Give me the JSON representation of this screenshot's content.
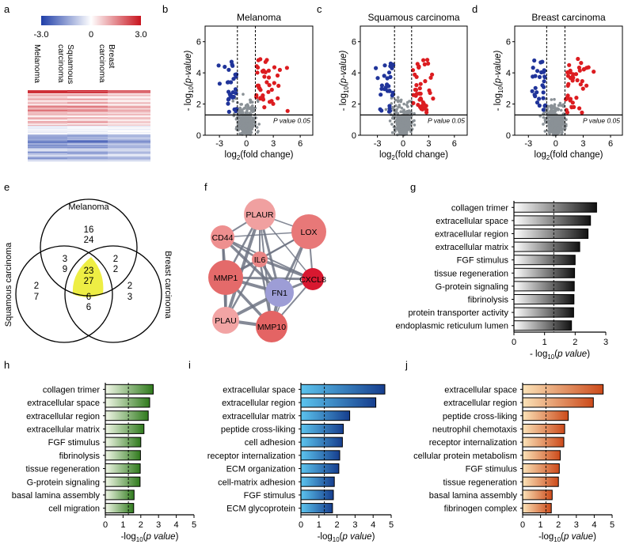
{
  "panel_letters": {
    "a": "a",
    "b": "b",
    "c": "c",
    "d": "d",
    "e": "e",
    "f": "f",
    "g": "g",
    "h": "h",
    "i": "i",
    "j": "j"
  },
  "heatmap": {
    "scale_min": "-3.0",
    "scale_mid": "0",
    "scale_max": "3.0",
    "columns": [
      "Melanoma",
      "Squamous carcinoma",
      "Breast carcinoma"
    ],
    "colors": {
      "neg": "#1f3ea8",
      "mid": "#ffffff",
      "pos": "#c8141e"
    }
  },
  "volcano": {
    "common": {
      "threshold_label": "P value 0.05",
      "xlabel_pre": "log",
      "xlabel_sub": "2",
      "xlabel_post": "(fold change)",
      "ylabel_pre": "- log",
      "ylabel_sub": "10",
      "ylabel_post": "(p-value)"
    },
    "plots": [
      {
        "key": "b",
        "title": "Melanoma",
        "xlim": [
          -4.6,
          7.4
        ],
        "xticks": [
          -3,
          0,
          3,
          6
        ],
        "ylim": [
          0,
          7
        ],
        "yticks": [
          0,
          2,
          4,
          6
        ],
        "fc_lines": [
          -1,
          1
        ],
        "p_line": 1.3
      },
      {
        "key": "c",
        "title": "Squamous carcinoma",
        "xlim": [
          -5,
          7.5
        ],
        "xticks": [
          -3,
          0,
          3,
          6
        ],
        "ylim": [
          0,
          7
        ],
        "yticks": [
          0,
          2,
          4,
          6
        ],
        "fc_lines": [
          -1,
          1
        ],
        "p_line": 1.3
      },
      {
        "key": "d",
        "title": "Breast carcinoma",
        "xlim": [
          -4.5,
          7.3
        ],
        "xticks": [
          -3,
          0,
          3,
          6
        ],
        "ylim": [
          0,
          7
        ],
        "yticks": [
          0,
          2,
          4,
          6
        ],
        "fc_lines": [
          -1,
          1
        ],
        "p_line": 1.3
      }
    ]
  },
  "venn": {
    "labels": {
      "top": "Melanoma",
      "left": "Squamous carcinoma",
      "right": "Breast carcinoma"
    },
    "regions": {
      "m_only": {
        "up": "16",
        "down": "24"
      },
      "ms": {
        "up": "3",
        "down": "9"
      },
      "mb": {
        "up": "2",
        "down": "2"
      },
      "all": {
        "up": "23",
        "down": "27"
      },
      "s_only": {
        "up": "2",
        "down": "7"
      },
      "b_only": {
        "up": "2",
        "down": "3"
      },
      "sb": {
        "up": "6",
        "down": "6"
      }
    },
    "colors": {
      "up": "#d62a1e",
      "down": "#2a78c2",
      "center": "#eeee44"
    }
  },
  "network": {
    "nodes": [
      {
        "id": "PLAUR",
        "color": "#f0a0a0"
      },
      {
        "id": "LOX",
        "color": "#e87878"
      },
      {
        "id": "CD44",
        "color": "#ee8f8f"
      },
      {
        "id": "IL6",
        "color": "#ea8585"
      },
      {
        "id": "MMP1",
        "color": "#e46a6a"
      },
      {
        "id": "FN1",
        "color": "#9d9dd6"
      },
      {
        "id": "CXCL8",
        "color": "#d81830"
      },
      {
        "id": "PLAU",
        "color": "#f2a4a4"
      },
      {
        "id": "MMP10",
        "color": "#e46464"
      }
    ],
    "edge_color": "#6e7484"
  },
  "chart_data": [
    {
      "panel": "g",
      "type": "bar",
      "orientation": "horizontal",
      "categories": [
        "collagen trimer",
        "extracellular space",
        "extracellular region",
        "extracellular matrix",
        "FGF stimulus",
        "tissue regeneration",
        "G-protein signaling",
        "fibrinolysis",
        "protein transporter activity",
        "endoplasmic reticulum lumen"
      ],
      "values": [
        2.7,
        2.5,
        2.42,
        2.15,
        2.0,
        1.98,
        1.97,
        1.96,
        1.95,
        1.88
      ],
      "xlim": [
        0,
        3
      ],
      "xticks": [
        0,
        1,
        2,
        3
      ],
      "threshold": 1.3,
      "xlabel_pre": "- log",
      "xlabel_sub": "10",
      "xlabel_post": "(p value)",
      "gradient": [
        "#ffffff",
        "#111111"
      ]
    },
    {
      "panel": "h",
      "type": "bar",
      "orientation": "horizontal",
      "categories": [
        "collagen trimer",
        "extracellular space",
        "extracellular region",
        "extracellular matrix",
        "FGF stimulus",
        "fibrinolysis",
        "tissue regeneration",
        "G-protein signaling",
        "basal lamina assembly",
        "cell migration"
      ],
      "values": [
        2.7,
        2.5,
        2.42,
        2.18,
        2.0,
        1.98,
        1.97,
        1.96,
        1.62,
        1.6
      ],
      "xlim": [
        0,
        5
      ],
      "xticks": [
        0,
        1,
        2,
        3,
        4,
        5
      ],
      "threshold": 1.3,
      "xlabel_pre": "-log",
      "xlabel_sub": "10",
      "xlabel_post": "(p value)",
      "gradient": [
        "#f2f8e8",
        "#2f7a1c"
      ]
    },
    {
      "panel": "i",
      "type": "bar",
      "orientation": "horizontal",
      "categories": [
        "extracellular space",
        "extracellular region",
        "extracellular matrix",
        "peptide cross-liking",
        "cell adhesion",
        "receptor internalization",
        "ECM organization",
        "cell-matrix adhesion",
        "FGF stimulus",
        "ECM glycoprotein"
      ],
      "values": [
        4.65,
        4.15,
        2.7,
        2.35,
        2.3,
        2.15,
        2.1,
        1.85,
        1.8,
        1.75
      ],
      "xlim": [
        0,
        5
      ],
      "xticks": [
        0,
        1,
        2,
        3,
        4,
        5
      ],
      "threshold": 1.3,
      "xlabel_pre": "-log",
      "xlabel_sub": "10",
      "xlabel_post": "(p value)",
      "gradient": [
        "#5cc4ee",
        "#163e8e"
      ]
    },
    {
      "panel": "j",
      "type": "bar",
      "orientation": "horizontal",
      "categories": [
        "extracellular space",
        "extracellular region",
        "peptide cross-liking",
        "neutrophil chemotaxis",
        "receptor internalization",
        "cellular protein metabolism",
        "FGF stimulus",
        "tissue regeneration",
        "basal lamina assembly",
        "fibrinogen complex"
      ],
      "values": [
        4.5,
        3.95,
        2.55,
        2.35,
        2.3,
        2.1,
        2.05,
        2.0,
        1.65,
        1.6
      ],
      "xlim": [
        0,
        5
      ],
      "xticks": [
        0,
        1,
        2,
        3,
        4,
        5
      ],
      "threshold": 1.3,
      "xlabel_pre": "-log",
      "xlabel_sub": "10",
      "xlabel_post": "(p value)",
      "gradient": [
        "#fbe3b8",
        "#cc4a1a"
      ]
    }
  ]
}
